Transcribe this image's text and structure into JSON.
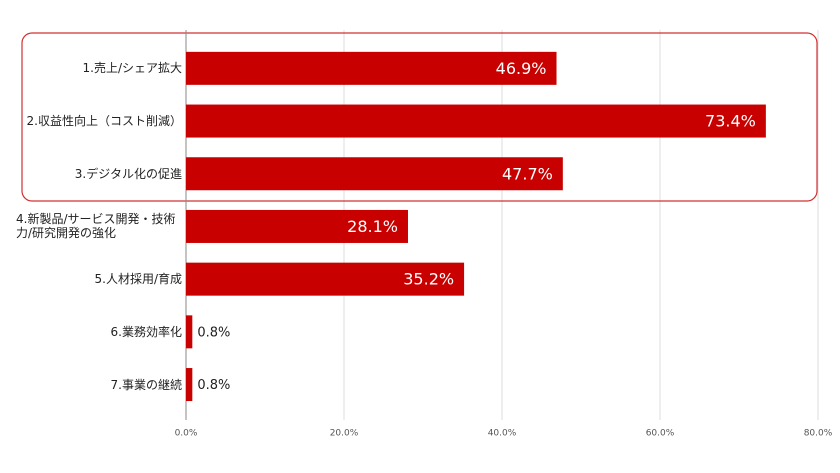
{
  "chart_data": {
    "type": "bar",
    "orientation": "horizontal",
    "categories": [
      "1.売上/シェア拡大",
      "2.収益性向上（コスト削減）",
      "3.デジタル化の促進",
      "4.新製品/サービス開発・技術力/研究開発の強化",
      "5.人材採用/育成",
      "6.業務効率化",
      "7.事業の継続"
    ],
    "values": [
      46.9,
      73.4,
      47.7,
      28.1,
      35.2,
      0.8,
      0.8
    ],
    "value_labels": [
      "46.9%",
      "73.4%",
      "47.7%",
      "28.1%",
      "35.2%",
      "0.8%",
      "0.8%"
    ],
    "color": "#c80000",
    "xlim": [
      0,
      80
    ],
    "xticks": [
      {
        "value": 0,
        "label": "0.0%"
      },
      {
        "value": 20,
        "label": "20.0%"
      },
      {
        "value": 40,
        "label": "40.0%"
      },
      {
        "value": 60,
        "label": "60.0%"
      },
      {
        "value": 80,
        "label": "80.0%"
      }
    ],
    "grid": true
  }
}
